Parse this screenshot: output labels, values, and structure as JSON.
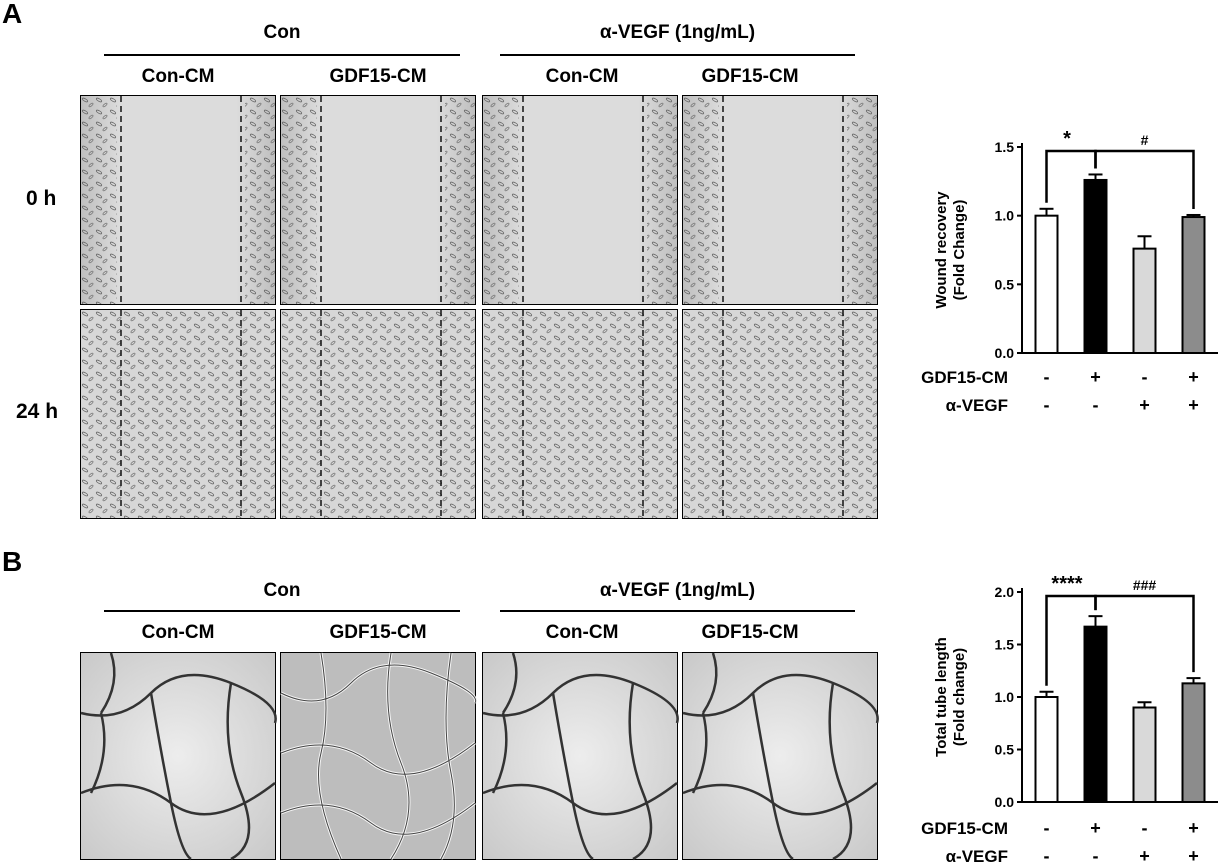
{
  "panels": [
    {
      "letter": "A",
      "groups": [
        "Con",
        "α-VEGF (1ng/mL)"
      ],
      "subgroups": [
        "Con-CM",
        "GDF15-CM",
        "Con-CM",
        "GDF15-CM"
      ],
      "rows": [
        "0 h",
        "24 h"
      ],
      "image_kind": "wound-healing micrograph",
      "chart_index": 0
    },
    {
      "letter": "B",
      "groups": [
        "Con",
        "α-VEGF (1ng/mL)"
      ],
      "subgroups": [
        "Con-CM",
        "GDF15-CM",
        "Con-CM",
        "GDF15-CM"
      ],
      "rows": [],
      "image_kind": "tube formation micrograph",
      "chart_index": 1
    }
  ],
  "chart_data": [
    {
      "type": "bar",
      "title": "",
      "xlabel": "",
      "ylabel_lines": [
        "Wound recovery",
        "(Fold Change)"
      ],
      "ylim": [
        0,
        1.5
      ],
      "yticks": [
        "0.0",
        "0.5",
        "1.0",
        "1.5"
      ],
      "ytick_values": [
        0,
        0.5,
        1.0,
        1.5
      ],
      "values": [
        1.0,
        1.26,
        0.76,
        0.99
      ],
      "errors": [
        0.05,
        0.04,
        0.09,
        0.015
      ],
      "bar_colors": [
        "#ffffff",
        "#000000",
        "#d9d9d9",
        "#8c8c8c"
      ],
      "significance": [
        {
          "from": 0,
          "to": 1,
          "label": "*"
        },
        {
          "from": 1,
          "to": 3,
          "label": "#"
        }
      ],
      "condition_table": {
        "rows": [
          {
            "label": "GDF15-CM",
            "signs": [
              "-",
              "+",
              "-",
              "+"
            ]
          },
          {
            "label": "α-VEGF",
            "signs": [
              "-",
              "-",
              "+",
              "+"
            ]
          }
        ]
      }
    },
    {
      "type": "bar",
      "title": "",
      "xlabel": "",
      "ylabel_lines": [
        "Total tube length",
        "(Fold  change)"
      ],
      "ylim": [
        0,
        2.0
      ],
      "yticks": [
        "0.0",
        "0.5",
        "1.0",
        "1.5",
        "2.0"
      ],
      "ytick_values": [
        0,
        0.5,
        1.0,
        1.5,
        2.0
      ],
      "values": [
        1.0,
        1.67,
        0.9,
        1.13
      ],
      "errors": [
        0.05,
        0.1,
        0.05,
        0.05
      ],
      "bar_colors": [
        "#ffffff",
        "#000000",
        "#d9d9d9",
        "#8c8c8c"
      ],
      "significance": [
        {
          "from": 0,
          "to": 1,
          "label": "****"
        },
        {
          "from": 1,
          "to": 3,
          "label": "###"
        }
      ],
      "condition_table": {
        "rows": [
          {
            "label": "GDF15-CM",
            "signs": [
              "-",
              "+",
              "-",
              "+"
            ]
          },
          {
            "label": "α-VEGF",
            "signs": [
              "-",
              "-",
              "+",
              "+"
            ]
          }
        ]
      }
    }
  ]
}
